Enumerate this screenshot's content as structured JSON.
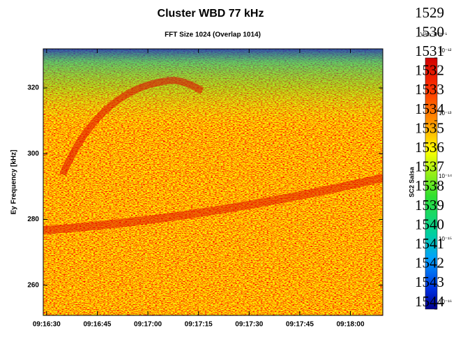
{
  "chart_data": {
    "type": "spectrogram",
    "title": "Cluster WBD 77 kHz",
    "subtitle": "FFT Size 1024 (Overlap  1014)",
    "ylabel": "Ey Frequency [kHz]",
    "xlim": [
      33389,
      33489.6
    ],
    "xticks": [
      {
        "value": 33390,
        "label": "09:16:30"
      },
      {
        "value": 33405,
        "label": "09:16:45"
      },
      {
        "value": 33420,
        "label": "09:17:00"
      },
      {
        "value": 33435,
        "label": "09:17:15"
      },
      {
        "value": 33450,
        "label": "09:17:30"
      },
      {
        "value": 33465,
        "label": "09:17:45"
      },
      {
        "value": 33480,
        "label": "09:18:00"
      }
    ],
    "ylim": [
      250.8,
      331.9
    ],
    "yticks": [
      260,
      280,
      300,
      320
    ],
    "colorbar": {
      "label": "SC2 Salsa",
      "unit": "V²m⁻²Hz⁻¹",
      "scale": "log",
      "lim": [
        1e-16,
        1e-12
      ],
      "ticks": [
        {
          "value": 1e-12,
          "label": "10⁻¹²"
        },
        {
          "value": 1e-13,
          "label": "10⁻¹³"
        },
        {
          "value": 1e-14,
          "label": "10⁻¹⁴"
        },
        {
          "value": 1e-15,
          "label": "10⁻¹⁵"
        },
        {
          "value": 1e-16,
          "label": "10⁻¹⁶"
        }
      ]
    }
  },
  "overlay_numbers": [
    1529,
    1530,
    1531,
    1532,
    1533,
    1534,
    1535,
    1536,
    1537,
    1538,
    1539,
    1540,
    1541,
    1542,
    1543,
    1544
  ]
}
